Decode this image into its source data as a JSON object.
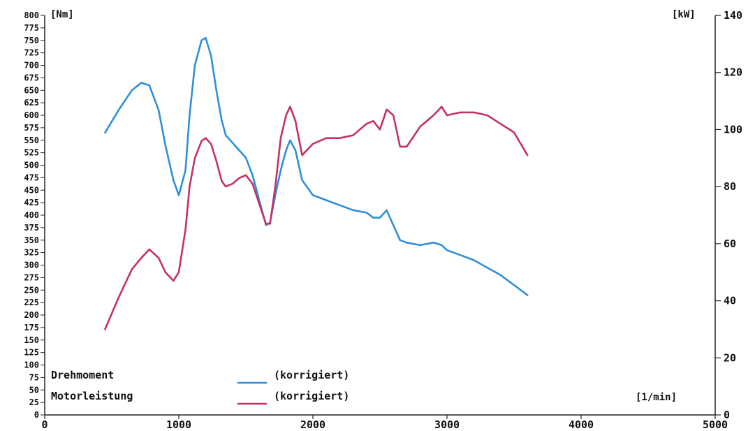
{
  "chart_data": {
    "type": "line",
    "xlabel": "[1/min]",
    "ylabel_left": "[Nm]",
    "ylabel_right": "[kW]",
    "x_ticks": [
      "0",
      "1000",
      "2000",
      "3000",
      "4000",
      "5000"
    ],
    "xlim": [
      0,
      5000
    ],
    "ylim_left": [
      0,
      800
    ],
    "ylim_right": [
      0,
      140
    ],
    "y_left_ticks": [
      "0",
      "25",
      "50",
      "75",
      "100",
      "125",
      "150",
      "175",
      "200",
      "225",
      "250",
      "275",
      "300",
      "325",
      "350",
      "375",
      "400",
      "425",
      "450",
      "475",
      "500",
      "525",
      "550",
      "575",
      "600",
      "625",
      "650",
      "675",
      "700",
      "725",
      "750",
      "775",
      "800"
    ],
    "y_right_ticks": [
      "0",
      "20",
      "40",
      "60",
      "80",
      "100",
      "120",
      "140"
    ],
    "grid": false,
    "series": [
      {
        "name": "Drehmoment",
        "note": "(korrigiert)",
        "axis": "left",
        "color": "#2f8fd8",
        "x": [
          450,
          550,
          650,
          720,
          780,
          850,
          900,
          960,
          1000,
          1050,
          1080,
          1120,
          1170,
          1200,
          1240,
          1280,
          1320,
          1350,
          1400,
          1450,
          1500,
          1550,
          1600,
          1650,
          1680,
          1720,
          1760,
          1800,
          1830,
          1870,
          1920,
          2000,
          2100,
          2200,
          2300,
          2400,
          2450,
          2500,
          2550,
          2600,
          2650,
          2700,
          2800,
          2900,
          2960,
          3000,
          3100,
          3200,
          3300,
          3400,
          3500,
          3600
        ],
        "y": [
          565,
          610,
          650,
          665,
          660,
          610,
          540,
          470,
          440,
          490,
          600,
          700,
          750,
          755,
          720,
          650,
          590,
          560,
          545,
          530,
          515,
          480,
          430,
          380,
          385,
          440,
          490,
          530,
          550,
          530,
          470,
          440,
          430,
          420,
          410,
          405,
          395,
          395,
          410,
          380,
          350,
          345,
          340,
          345,
          340,
          330,
          320,
          310,
          295,
          280,
          260,
          240
        ]
      },
      {
        "name": "Motorleistung",
        "note": "(korrigiert)",
        "axis": "right",
        "color": "#c43068",
        "x": [
          450,
          550,
          650,
          720,
          780,
          850,
          900,
          960,
          1000,
          1050,
          1080,
          1120,
          1170,
          1200,
          1240,
          1280,
          1320,
          1350,
          1400,
          1450,
          1500,
          1550,
          1600,
          1650,
          1680,
          1720,
          1760,
          1800,
          1830,
          1870,
          1920,
          2000,
          2100,
          2200,
          2300,
          2400,
          2450,
          2500,
          2550,
          2600,
          2650,
          2700,
          2800,
          2900,
          2960,
          3000,
          3100,
          3200,
          3300,
          3400,
          3500,
          3600
        ],
        "y": [
          30,
          41,
          51,
          55,
          58,
          55,
          50,
          47,
          50,
          65,
          80,
          90,
          96,
          97,
          95,
          89,
          82,
          80,
          81,
          83,
          84,
          81,
          74,
          67,
          67,
          80,
          97,
          105,
          108,
          103,
          91,
          95,
          97,
          97,
          98,
          102,
          103,
          100,
          107,
          105,
          94,
          94,
          101,
          105,
          108,
          105,
          106,
          106,
          105,
          102,
          99,
          91
        ]
      }
    ],
    "legend": {
      "position": "bottom-left",
      "entries": [
        {
          "label": "Drehmoment",
          "note": "(korrigiert)",
          "color": "#2f8fd8"
        },
        {
          "label": "Motorleistung",
          "note": "(korrigiert)",
          "color": "#c43068"
        }
      ]
    }
  }
}
